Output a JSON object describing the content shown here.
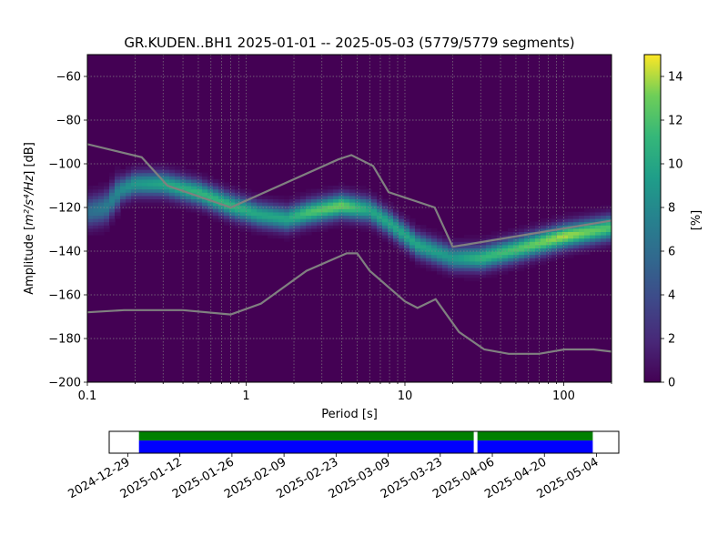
{
  "chart_data": {
    "type": "heatmap",
    "title": "GR.KUDEN..BH1   2025-01-01 -- 2025-05-03  (5779/5779 segments)",
    "xlabel": "Period [s]",
    "ylabel_main": "Amplitude [",
    "ylabel_unit": "m²/s⁴/Hz",
    "ylabel_end": "] [dB]",
    "x_scale": "log",
    "xlim": [
      0.1,
      200
    ],
    "ylim": [
      -200,
      -50
    ],
    "x_ticks": [
      {
        "value": 0.1,
        "label": "0.1"
      },
      {
        "value": 1,
        "label": "1"
      },
      {
        "value": 10,
        "label": "10"
      },
      {
        "value": 100,
        "label": "100"
      }
    ],
    "y_ticks": [
      -60,
      -80,
      -100,
      -120,
      -140,
      -160,
      -180,
      -200
    ],
    "grid": true,
    "colorbar": {
      "label": "[%]",
      "range": [
        0,
        15
      ],
      "ticks": [
        0,
        2,
        4,
        6,
        8,
        10,
        12,
        14
      ],
      "colormap": "viridis"
    },
    "ppsd_center": [
      {
        "period": 0.1,
        "db": -122,
        "peak": 6
      },
      {
        "period": 0.13,
        "db": -120,
        "peak": 7
      },
      {
        "period": 0.16,
        "db": -112,
        "peak": 8
      },
      {
        "period": 0.2,
        "db": -109,
        "peak": 9
      },
      {
        "period": 0.3,
        "db": -109,
        "peak": 10
      },
      {
        "period": 0.5,
        "db": -113,
        "peak": 11
      },
      {
        "period": 0.8,
        "db": -119,
        "peak": 11
      },
      {
        "period": 1.2,
        "db": -123,
        "peak": 10
      },
      {
        "period": 1.8,
        "db": -125,
        "peak": 10
      },
      {
        "period": 2.5,
        "db": -122,
        "peak": 12
      },
      {
        "period": 4,
        "db": -119,
        "peak": 13
      },
      {
        "period": 6,
        "db": -121,
        "peak": 10
      },
      {
        "period": 8,
        "db": -127,
        "peak": 10
      },
      {
        "period": 12,
        "db": -137,
        "peak": 10
      },
      {
        "period": 20,
        "db": -143,
        "peak": 9
      },
      {
        "period": 30,
        "db": -143,
        "peak": 11
      },
      {
        "period": 50,
        "db": -139,
        "peak": 12
      },
      {
        "period": 100,
        "db": -133,
        "peak": 14
      },
      {
        "period": 200,
        "db": -129,
        "peak": 12
      }
    ],
    "nhnm": {
      "name": "NHNM",
      "color": "#808080",
      "points": [
        [
          0.1,
          -91
        ],
        [
          0.22,
          -97
        ],
        [
          0.32,
          -110
        ],
        [
          0.8,
          -120
        ],
        [
          3.8,
          -98
        ],
        [
          4.6,
          -96
        ],
        [
          6.3,
          -101
        ],
        [
          7.9,
          -113
        ],
        [
          15.4,
          -120
        ],
        [
          20,
          -138
        ],
        [
          200,
          -126
        ]
      ]
    },
    "nlnm": {
      "name": "NLNM",
      "color": "#808080",
      "points": [
        [
          0.1,
          -168
        ],
        [
          0.17,
          -167
        ],
        [
          0.4,
          -167
        ],
        [
          0.8,
          -169
        ],
        [
          1.24,
          -164
        ],
        [
          2.4,
          -149
        ],
        [
          4.3,
          -141
        ],
        [
          5,
          -141
        ],
        [
          6,
          -149
        ],
        [
          10,
          -163
        ],
        [
          12,
          -166
        ],
        [
          15.6,
          -162
        ],
        [
          21.9,
          -177
        ],
        [
          31.6,
          -185
        ],
        [
          45,
          -187
        ],
        [
          70,
          -187
        ],
        [
          101,
          -185
        ],
        [
          154,
          -185
        ],
        [
          200,
          -186
        ]
      ]
    },
    "availability": {
      "range": [
        "2024-12-24",
        "2025-05-10"
      ],
      "tick_labels": [
        "2024-12-29",
        "2025-01-12",
        "2025-01-26",
        "2025-02-09",
        "2025-02-23",
        "2025-03-09",
        "2025-03-23",
        "2025-04-06",
        "2025-04-20",
        "2025-05-04"
      ],
      "green_color": "#008000",
      "blue_color": "#0000ff",
      "segments": [
        {
          "start": "2025-01-01",
          "end": "2025-04-01"
        },
        {
          "start": "2025-04-02",
          "end": "2025-05-03"
        }
      ]
    }
  }
}
